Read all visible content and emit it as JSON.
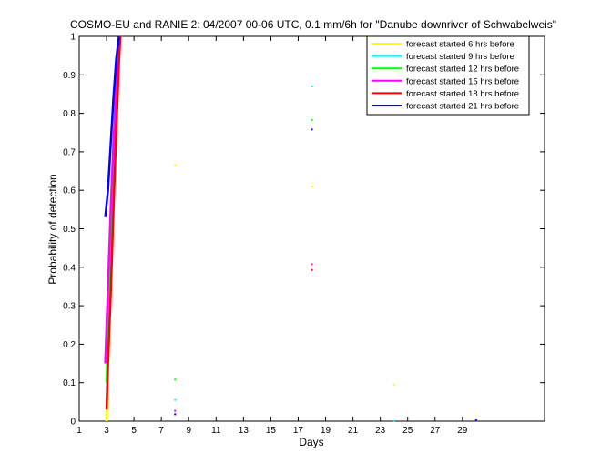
{
  "chart_data": {
    "type": "line",
    "title": "COSMO-EU and RANIE 2: 04/2007 00-06 UTC, 0.1 mm/6h for \"Danube downriver of Schwabelweis\"",
    "xlabel": "Days",
    "ylabel": "Probability of detection",
    "xlim": [
      1,
      35
    ],
    "ylim": [
      0,
      1
    ],
    "xticks": [
      1,
      3,
      5,
      7,
      9,
      11,
      13,
      15,
      17,
      19,
      21,
      23,
      25,
      27,
      29
    ],
    "yticks": [
      0,
      0.1,
      0.2,
      0.3,
      0.4,
      0.5,
      0.6,
      0.7,
      0.8,
      0.9,
      1
    ],
    "ytick_labels": [
      "0",
      "0.1",
      "0.2",
      "0.3",
      "0.4",
      "0.5",
      "0.6",
      "0.7",
      "0.8",
      "0.9",
      "1"
    ],
    "grid": false,
    "legend_position": "top-right",
    "series": [
      {
        "name": "forecast started 6 hrs before",
        "color": "#ffff00",
        "line": [
          [
            3.0,
            0.0
          ],
          [
            3.2,
            0.25
          ],
          [
            3.4,
            0.5
          ],
          [
            3.6,
            0.72
          ],
          [
            3.8,
            0.9
          ],
          [
            4.0,
            1.0
          ]
        ],
        "points": [
          [
            8.0,
            0.665
          ],
          [
            18.0,
            0.61
          ],
          [
            24.0,
            0.095
          ]
        ]
      },
      {
        "name": "forecast started 9 hrs before",
        "color": "#00ffff",
        "line": [
          [
            3.0,
            0.05
          ],
          [
            3.2,
            0.3
          ],
          [
            3.4,
            0.55
          ],
          [
            3.6,
            0.76
          ],
          [
            3.8,
            0.92
          ],
          [
            4.0,
            1.0
          ]
        ],
        "points": [
          [
            8.0,
            0.055
          ],
          [
            18.0,
            0.87
          ],
          [
            24.0,
            0.0
          ]
        ]
      },
      {
        "name": "forecast started 12 hrs before",
        "color": "#00ff00",
        "line": [
          [
            3.0,
            0.1
          ],
          [
            3.2,
            0.35
          ],
          [
            3.4,
            0.6
          ],
          [
            3.6,
            0.8
          ],
          [
            3.8,
            0.94
          ],
          [
            4.0,
            1.0
          ]
        ],
        "points": [
          [
            8.0,
            0.108
          ],
          [
            18.0,
            0.783
          ]
        ]
      },
      {
        "name": "forecast started 15 hrs before",
        "color": "#ff00ff",
        "line": [
          [
            2.9,
            0.15
          ],
          [
            3.1,
            0.35
          ],
          [
            3.3,
            0.55
          ],
          [
            3.5,
            0.72
          ],
          [
            3.7,
            0.86
          ],
          [
            3.9,
            0.96
          ],
          [
            4.0,
            1.0
          ]
        ],
        "points": [
          [
            8.0,
            0.027
          ],
          [
            18.0,
            0.408
          ],
          [
            30.0,
            0.002
          ]
        ]
      },
      {
        "name": "forecast started 18 hrs before",
        "color": "#ff0000",
        "line": [
          [
            3.0,
            0.03
          ],
          [
            3.1,
            0.15
          ],
          [
            3.3,
            0.33
          ],
          [
            3.5,
            0.55
          ],
          [
            3.7,
            0.75
          ],
          [
            3.9,
            0.93
          ],
          [
            4.0,
            1.0
          ]
        ],
        "points": [
          [
            18.0,
            0.393
          ]
        ]
      },
      {
        "name": "forecast started 21 hrs before",
        "color": "#0000ff",
        "line": [
          [
            2.9,
            0.53
          ],
          [
            3.1,
            0.6
          ],
          [
            3.3,
            0.72
          ],
          [
            3.5,
            0.84
          ],
          [
            3.7,
            0.94
          ],
          [
            3.9,
            1.0
          ]
        ],
        "points": [
          [
            8.0,
            0.018
          ],
          [
            18.0,
            0.758
          ],
          [
            30.0,
            0.002
          ]
        ]
      }
    ]
  }
}
